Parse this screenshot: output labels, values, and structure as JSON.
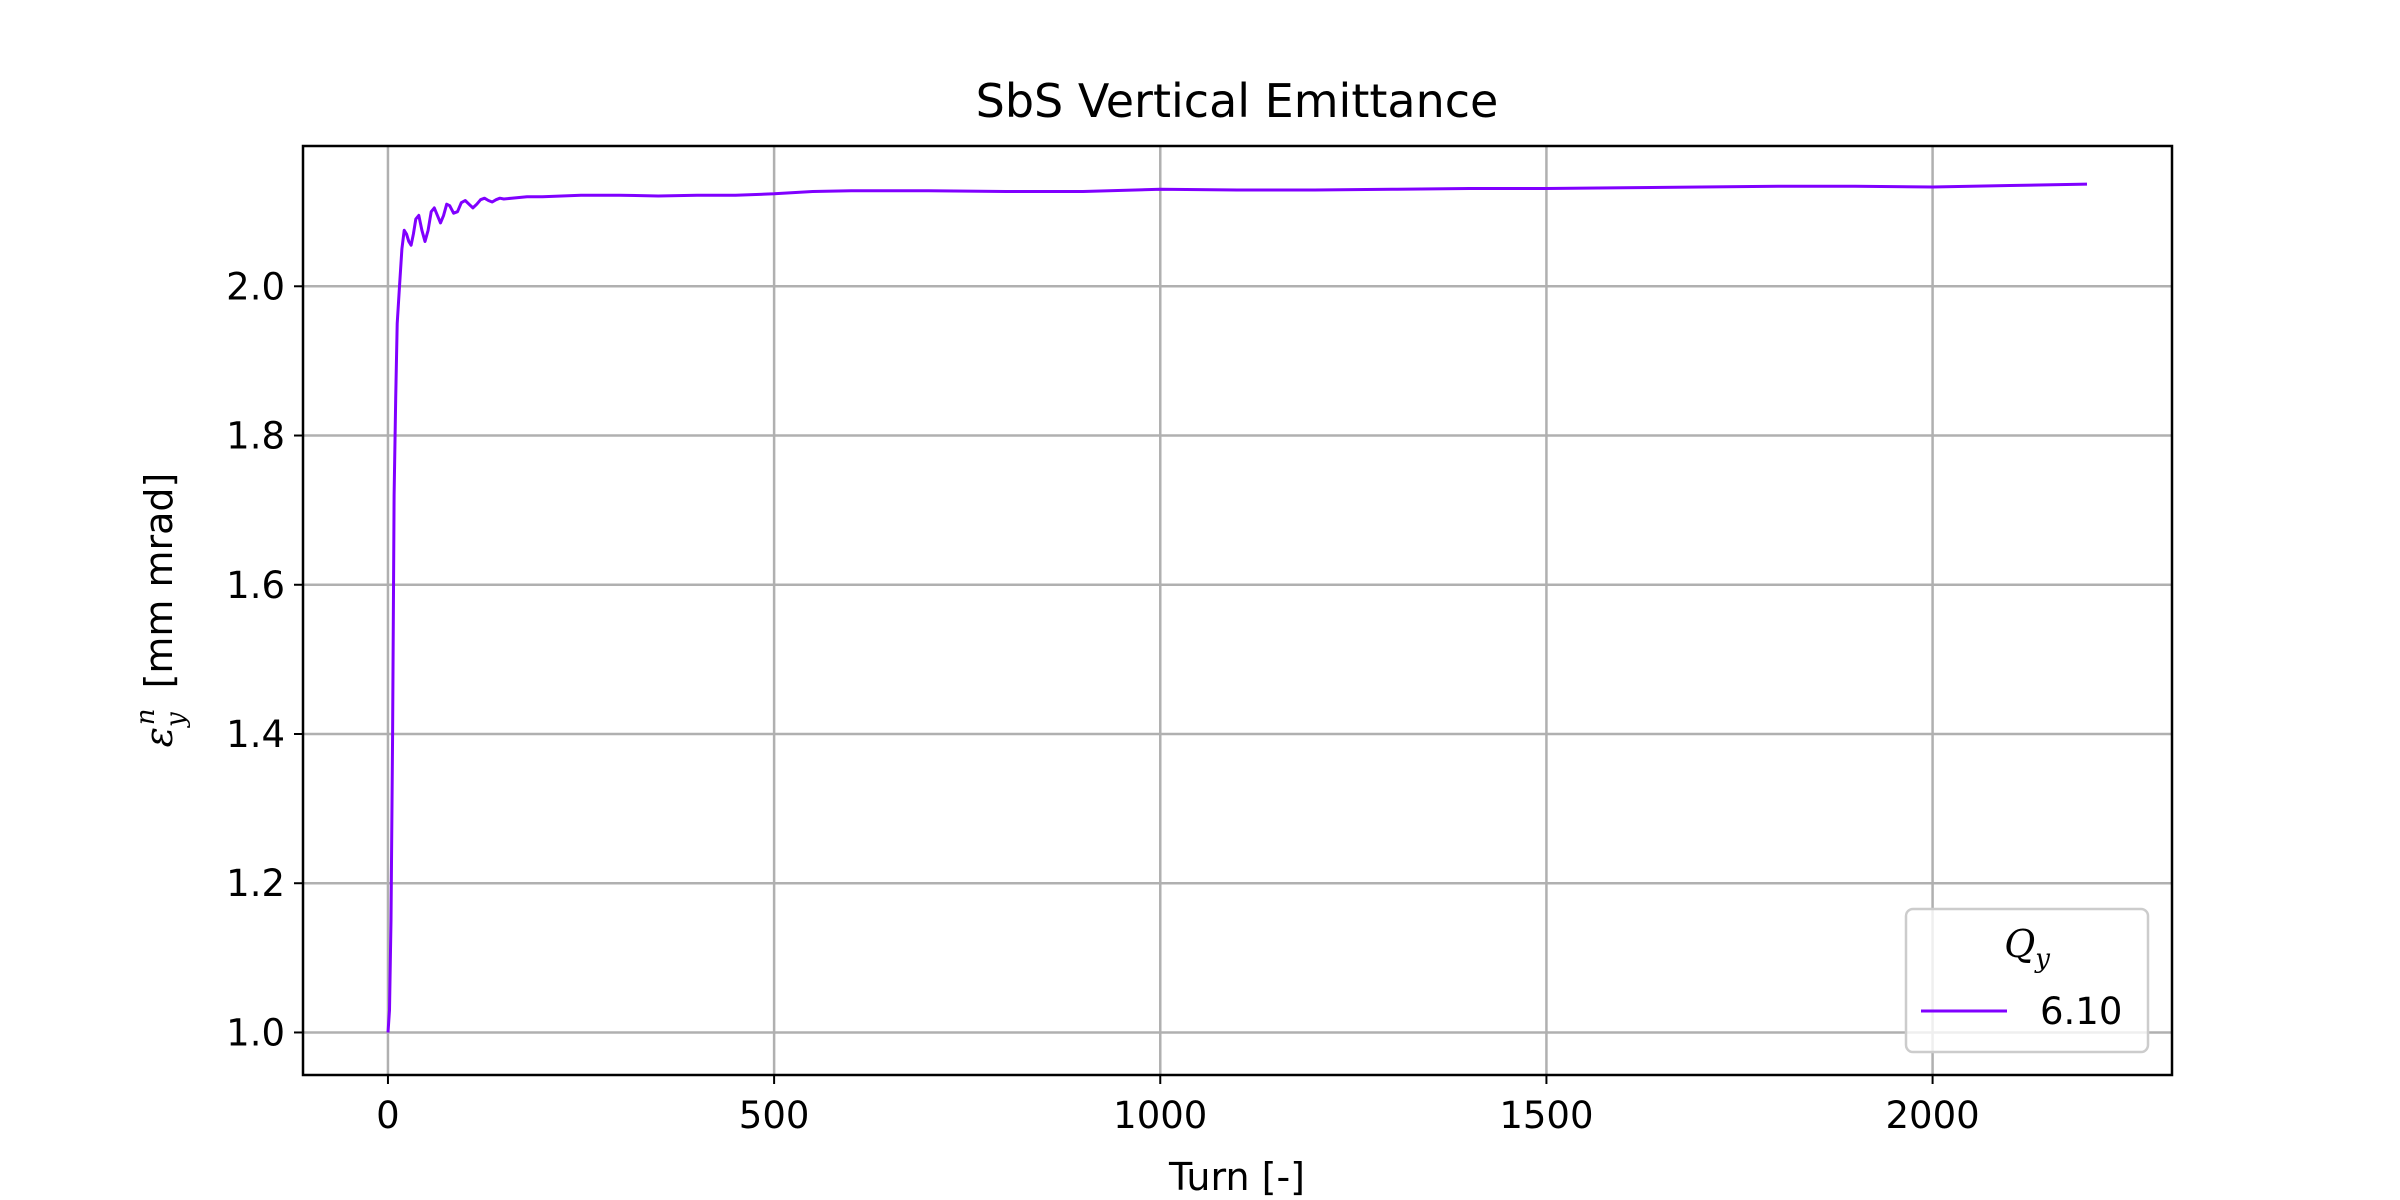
{
  "chart_data": {
    "type": "line",
    "title": "SbS Vertical Emittance",
    "xlabel": "Turn [-]",
    "ylabel": "ε_y^n [mm mrad]",
    "xlim": [
      -110,
      2310
    ],
    "ylim": [
      0.943,
      2.188
    ],
    "xticks": [
      0,
      500,
      1000,
      1500,
      2000
    ],
    "yticks": [
      1.0,
      1.2,
      1.4,
      1.6,
      1.8,
      2.0
    ],
    "xtick_labels": [
      "0",
      "500",
      "1000",
      "1500",
      "2000"
    ],
    "ytick_labels": [
      "1.0",
      "1.2",
      "1.4",
      "1.6",
      "1.8",
      "2.0"
    ],
    "grid": true,
    "legend": {
      "title": "Q_y",
      "position": "lower-right"
    },
    "colors": {
      "series": "#8000ff"
    },
    "series": [
      {
        "name": "6.10",
        "color": "#8000ff",
        "x": [
          0,
          2,
          4,
          6,
          8,
          10,
          12,
          15,
          18,
          21,
          24,
          27,
          30,
          33,
          36,
          40,
          44,
          48,
          52,
          56,
          60,
          64,
          68,
          72,
          76,
          80,
          85,
          90,
          95,
          100,
          105,
          110,
          115,
          120,
          125,
          130,
          135,
          140,
          145,
          150,
          160,
          170,
          180,
          200,
          250,
          300,
          350,
          400,
          450,
          500,
          550,
          600,
          700,
          800,
          900,
          1000,
          1100,
          1200,
          1300,
          1400,
          1500,
          1600,
          1700,
          1800,
          1900,
          2000,
          2100,
          2200
        ],
        "y": [
          1.0,
          1.03,
          1.15,
          1.4,
          1.72,
          1.85,
          1.95,
          2.0,
          2.05,
          2.075,
          2.07,
          2.06,
          2.055,
          2.07,
          2.09,
          2.095,
          2.075,
          2.06,
          2.075,
          2.1,
          2.105,
          2.095,
          2.085,
          2.095,
          2.11,
          2.108,
          2.098,
          2.1,
          2.112,
          2.115,
          2.11,
          2.105,
          2.11,
          2.116,
          2.118,
          2.115,
          2.113,
          2.116,
          2.118,
          2.117,
          2.118,
          2.119,
          2.12,
          2.12,
          2.122,
          2.122,
          2.121,
          2.122,
          2.122,
          2.124,
          2.127,
          2.128,
          2.128,
          2.127,
          2.127,
          2.13,
          2.129,
          2.129,
          2.13,
          2.131,
          2.131,
          2.132,
          2.133,
          2.134,
          2.134,
          2.133,
          2.135,
          2.137
        ]
      }
    ]
  }
}
